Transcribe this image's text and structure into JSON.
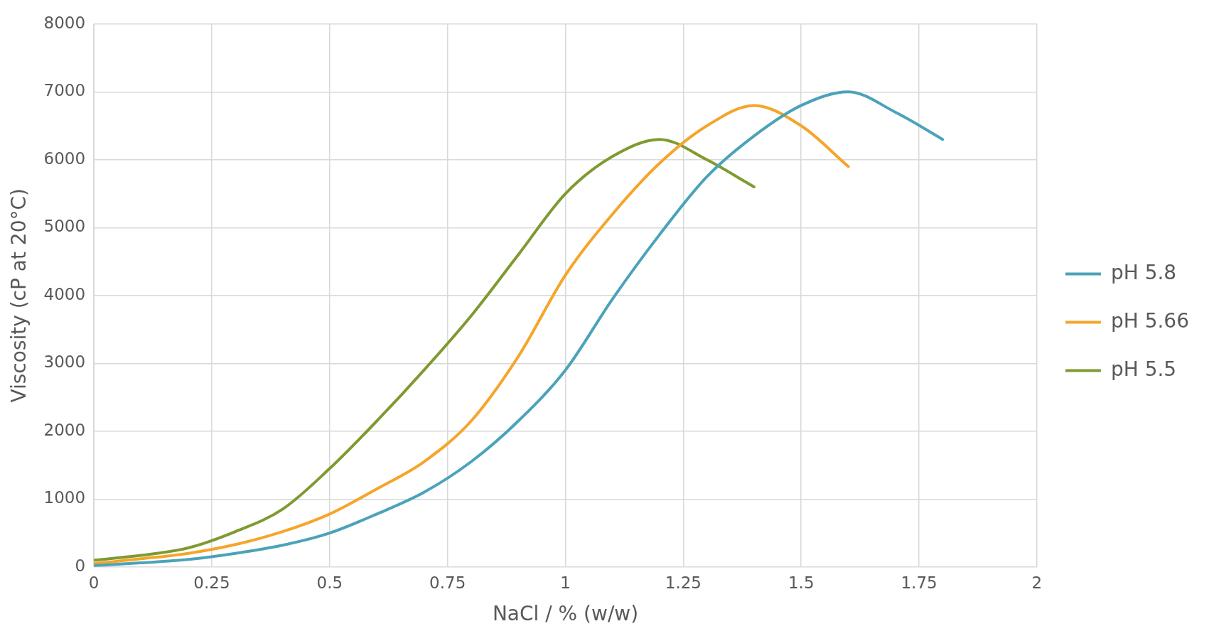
{
  "chart_data": {
    "type": "line",
    "xlabel": "NaCl / % (w/w)",
    "ylabel": "Viscosity (cP at 20°C)",
    "xlim": [
      0,
      2
    ],
    "xticks": [
      0,
      0.25,
      0.5,
      0.75,
      1,
      1.25,
      1.5,
      1.75,
      2
    ],
    "ylim": [
      0,
      8000
    ],
    "yticks": [
      0,
      1000,
      2000,
      3000,
      4000,
      5000,
      6000,
      7000,
      8000
    ],
    "grid": true,
    "legend": "right",
    "marker": "none",
    "line_style": "solid",
    "series": [
      {
        "name": "pH 5.8",
        "color": "#4ba3b9",
        "x": [
          0,
          0.1,
          0.2,
          0.3,
          0.4,
          0.5,
          0.6,
          0.7,
          0.8,
          0.9,
          1,
          1.1,
          1.2,
          1.3,
          1.4,
          1.5,
          1.6,
          1.7,
          1.8
        ],
        "values": [
          20,
          60,
          110,
          200,
          320,
          500,
          780,
          1100,
          1550,
          2150,
          2900,
          3950,
          4900,
          5750,
          6350,
          6800,
          7000,
          6700,
          6300
        ]
      },
      {
        "name": "pH 5.66",
        "color": "#f5a52a",
        "x": [
          0,
          0.1,
          0.2,
          0.3,
          0.4,
          0.5,
          0.6,
          0.7,
          0.8,
          0.9,
          1,
          1.1,
          1.2,
          1.3,
          1.4,
          1.5,
          1.6
        ],
        "values": [
          50,
          120,
          200,
          330,
          520,
          780,
          1150,
          1550,
          2150,
          3100,
          4300,
          5200,
          5950,
          6500,
          6800,
          6500,
          5900
        ]
      },
      {
        "name": "pH 5.5",
        "color": "#7f9a30",
        "x": [
          0,
          0.1,
          0.2,
          0.3,
          0.4,
          0.5,
          0.6,
          0.7,
          0.8,
          0.9,
          1,
          1.1,
          1.2,
          1.3,
          1.4
        ],
        "values": [
          100,
          170,
          280,
          520,
          850,
          1450,
          2150,
          2900,
          3700,
          4600,
          5500,
          6050,
          6300,
          6000,
          5600
        ]
      }
    ]
  }
}
